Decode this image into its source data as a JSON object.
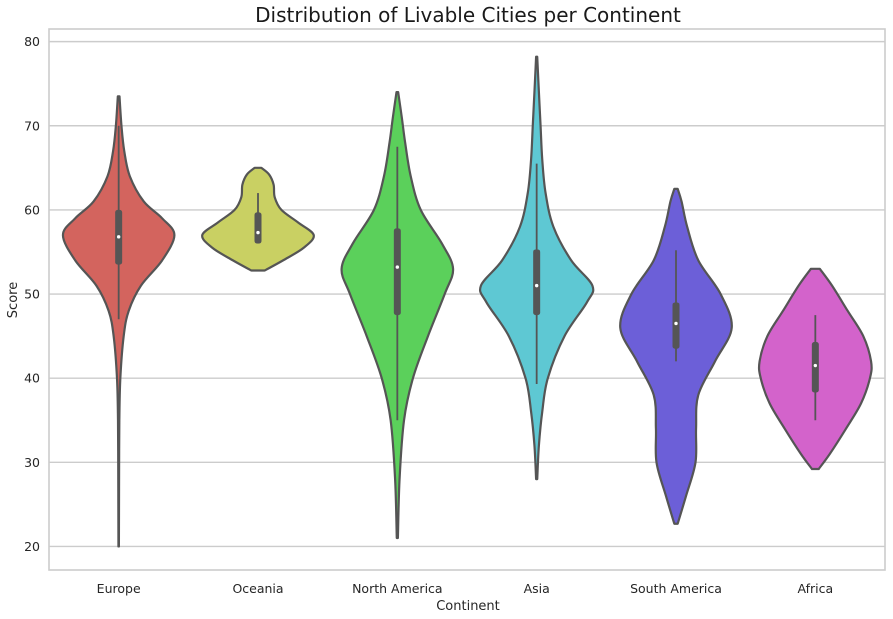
{
  "chart_data": {
    "type": "violin",
    "title": "Distribution of Livable Cities per Continent",
    "xlabel": "Continent",
    "ylabel": "Score",
    "ylim": [
      17.2,
      81.5
    ],
    "yticks": [
      20,
      30,
      40,
      50,
      60,
      70,
      80
    ],
    "grid": true,
    "categories": [
      "Europe",
      "Oceania",
      "North America",
      "Asia",
      "South America",
      "Africa"
    ],
    "series": [
      {
        "category": "Europe",
        "color": "#d3645e",
        "min": 20,
        "q1": 53.5,
        "median": 56.8,
        "q3": 60.0,
        "max": 73.5,
        "whisker_low": 47,
        "whisker_high": 70,
        "density": [
          [
            20,
            0.004
          ],
          [
            25,
            0.006
          ],
          [
            30,
            0.008
          ],
          [
            35,
            0.012
          ],
          [
            40,
            0.03
          ],
          [
            45,
            0.09
          ],
          [
            48,
            0.18
          ],
          [
            51,
            0.4
          ],
          [
            54,
            0.78
          ],
          [
            57,
            1.0
          ],
          [
            59,
            0.78
          ],
          [
            61,
            0.45
          ],
          [
            64,
            0.2
          ],
          [
            67,
            0.1
          ],
          [
            70,
            0.05
          ],
          [
            73.5,
            0.015
          ]
        ]
      },
      {
        "category": "Oceania",
        "color": "#c9d063",
        "min": 52.8,
        "q1": 56.0,
        "median": 57.3,
        "q3": 59.7,
        "max": 65.0,
        "whisker_low": 56,
        "whisker_high": 62,
        "density": [
          [
            52.8,
            0.12
          ],
          [
            54,
            0.45
          ],
          [
            55.5,
            0.82
          ],
          [
            57,
            1.0
          ],
          [
            58.5,
            0.72
          ],
          [
            60,
            0.42
          ],
          [
            61.5,
            0.3
          ],
          [
            63,
            0.28
          ],
          [
            64.2,
            0.2
          ],
          [
            65,
            0.06
          ]
        ]
      },
      {
        "category": "North America",
        "color": "#5bd05b",
        "min": 21,
        "q1": 47.5,
        "median": 53.2,
        "q3": 57.8,
        "max": 74.0,
        "whisker_low": 35,
        "whisker_high": 67.5,
        "density": [
          [
            21,
            0.01
          ],
          [
            28,
            0.04
          ],
          [
            35,
            0.12
          ],
          [
            40,
            0.28
          ],
          [
            45,
            0.55
          ],
          [
            50,
            0.85
          ],
          [
            53,
            1.0
          ],
          [
            56,
            0.8
          ],
          [
            60,
            0.42
          ],
          [
            64,
            0.24
          ],
          [
            68,
            0.14
          ],
          [
            71,
            0.08
          ],
          [
            74,
            0.015
          ]
        ]
      },
      {
        "category": "Asia",
        "color": "#5ec8d3",
        "min": 28,
        "q1": 47.5,
        "median": 51.0,
        "q3": 55.3,
        "max": 78.2,
        "whisker_low": 39.3,
        "whisker_high": 65.5,
        "density": [
          [
            28,
            0.01
          ],
          [
            32,
            0.04
          ],
          [
            36,
            0.1
          ],
          [
            40,
            0.2
          ],
          [
            45,
            0.5
          ],
          [
            49,
            0.9
          ],
          [
            51,
            1.0
          ],
          [
            54,
            0.62
          ],
          [
            58,
            0.3
          ],
          [
            62,
            0.16
          ],
          [
            66,
            0.1
          ],
          [
            70,
            0.07
          ],
          [
            74,
            0.04
          ],
          [
            78.2,
            0.01
          ]
        ]
      },
      {
        "category": "South America",
        "color": "#6c5fd8",
        "min": 22.7,
        "q1": 43.5,
        "median": 46.5,
        "q3": 49.0,
        "max": 62.5,
        "whisker_low": 42,
        "whisker_high": 55.2,
        "density": [
          [
            22.7,
            0.03
          ],
          [
            26,
            0.18
          ],
          [
            30,
            0.35
          ],
          [
            34,
            0.36
          ],
          [
            38,
            0.4
          ],
          [
            42,
            0.7
          ],
          [
            46,
            1.0
          ],
          [
            50,
            0.8
          ],
          [
            54,
            0.4
          ],
          [
            58,
            0.2
          ],
          [
            61,
            0.1
          ],
          [
            62.5,
            0.03
          ]
        ]
      },
      {
        "category": "Africa",
        "color": "#d363cb",
        "min": 29.2,
        "q1": 38.3,
        "median": 41.5,
        "q3": 44.3,
        "max": 53.0,
        "whisker_low": 35,
        "whisker_high": 47.5,
        "density": [
          [
            29.2,
            0.06
          ],
          [
            31,
            0.26
          ],
          [
            34,
            0.55
          ],
          [
            37,
            0.82
          ],
          [
            40,
            0.98
          ],
          [
            42,
            1.0
          ],
          [
            45,
            0.86
          ],
          [
            48,
            0.58
          ],
          [
            51,
            0.3
          ],
          [
            53,
            0.08
          ]
        ]
      }
    ]
  }
}
